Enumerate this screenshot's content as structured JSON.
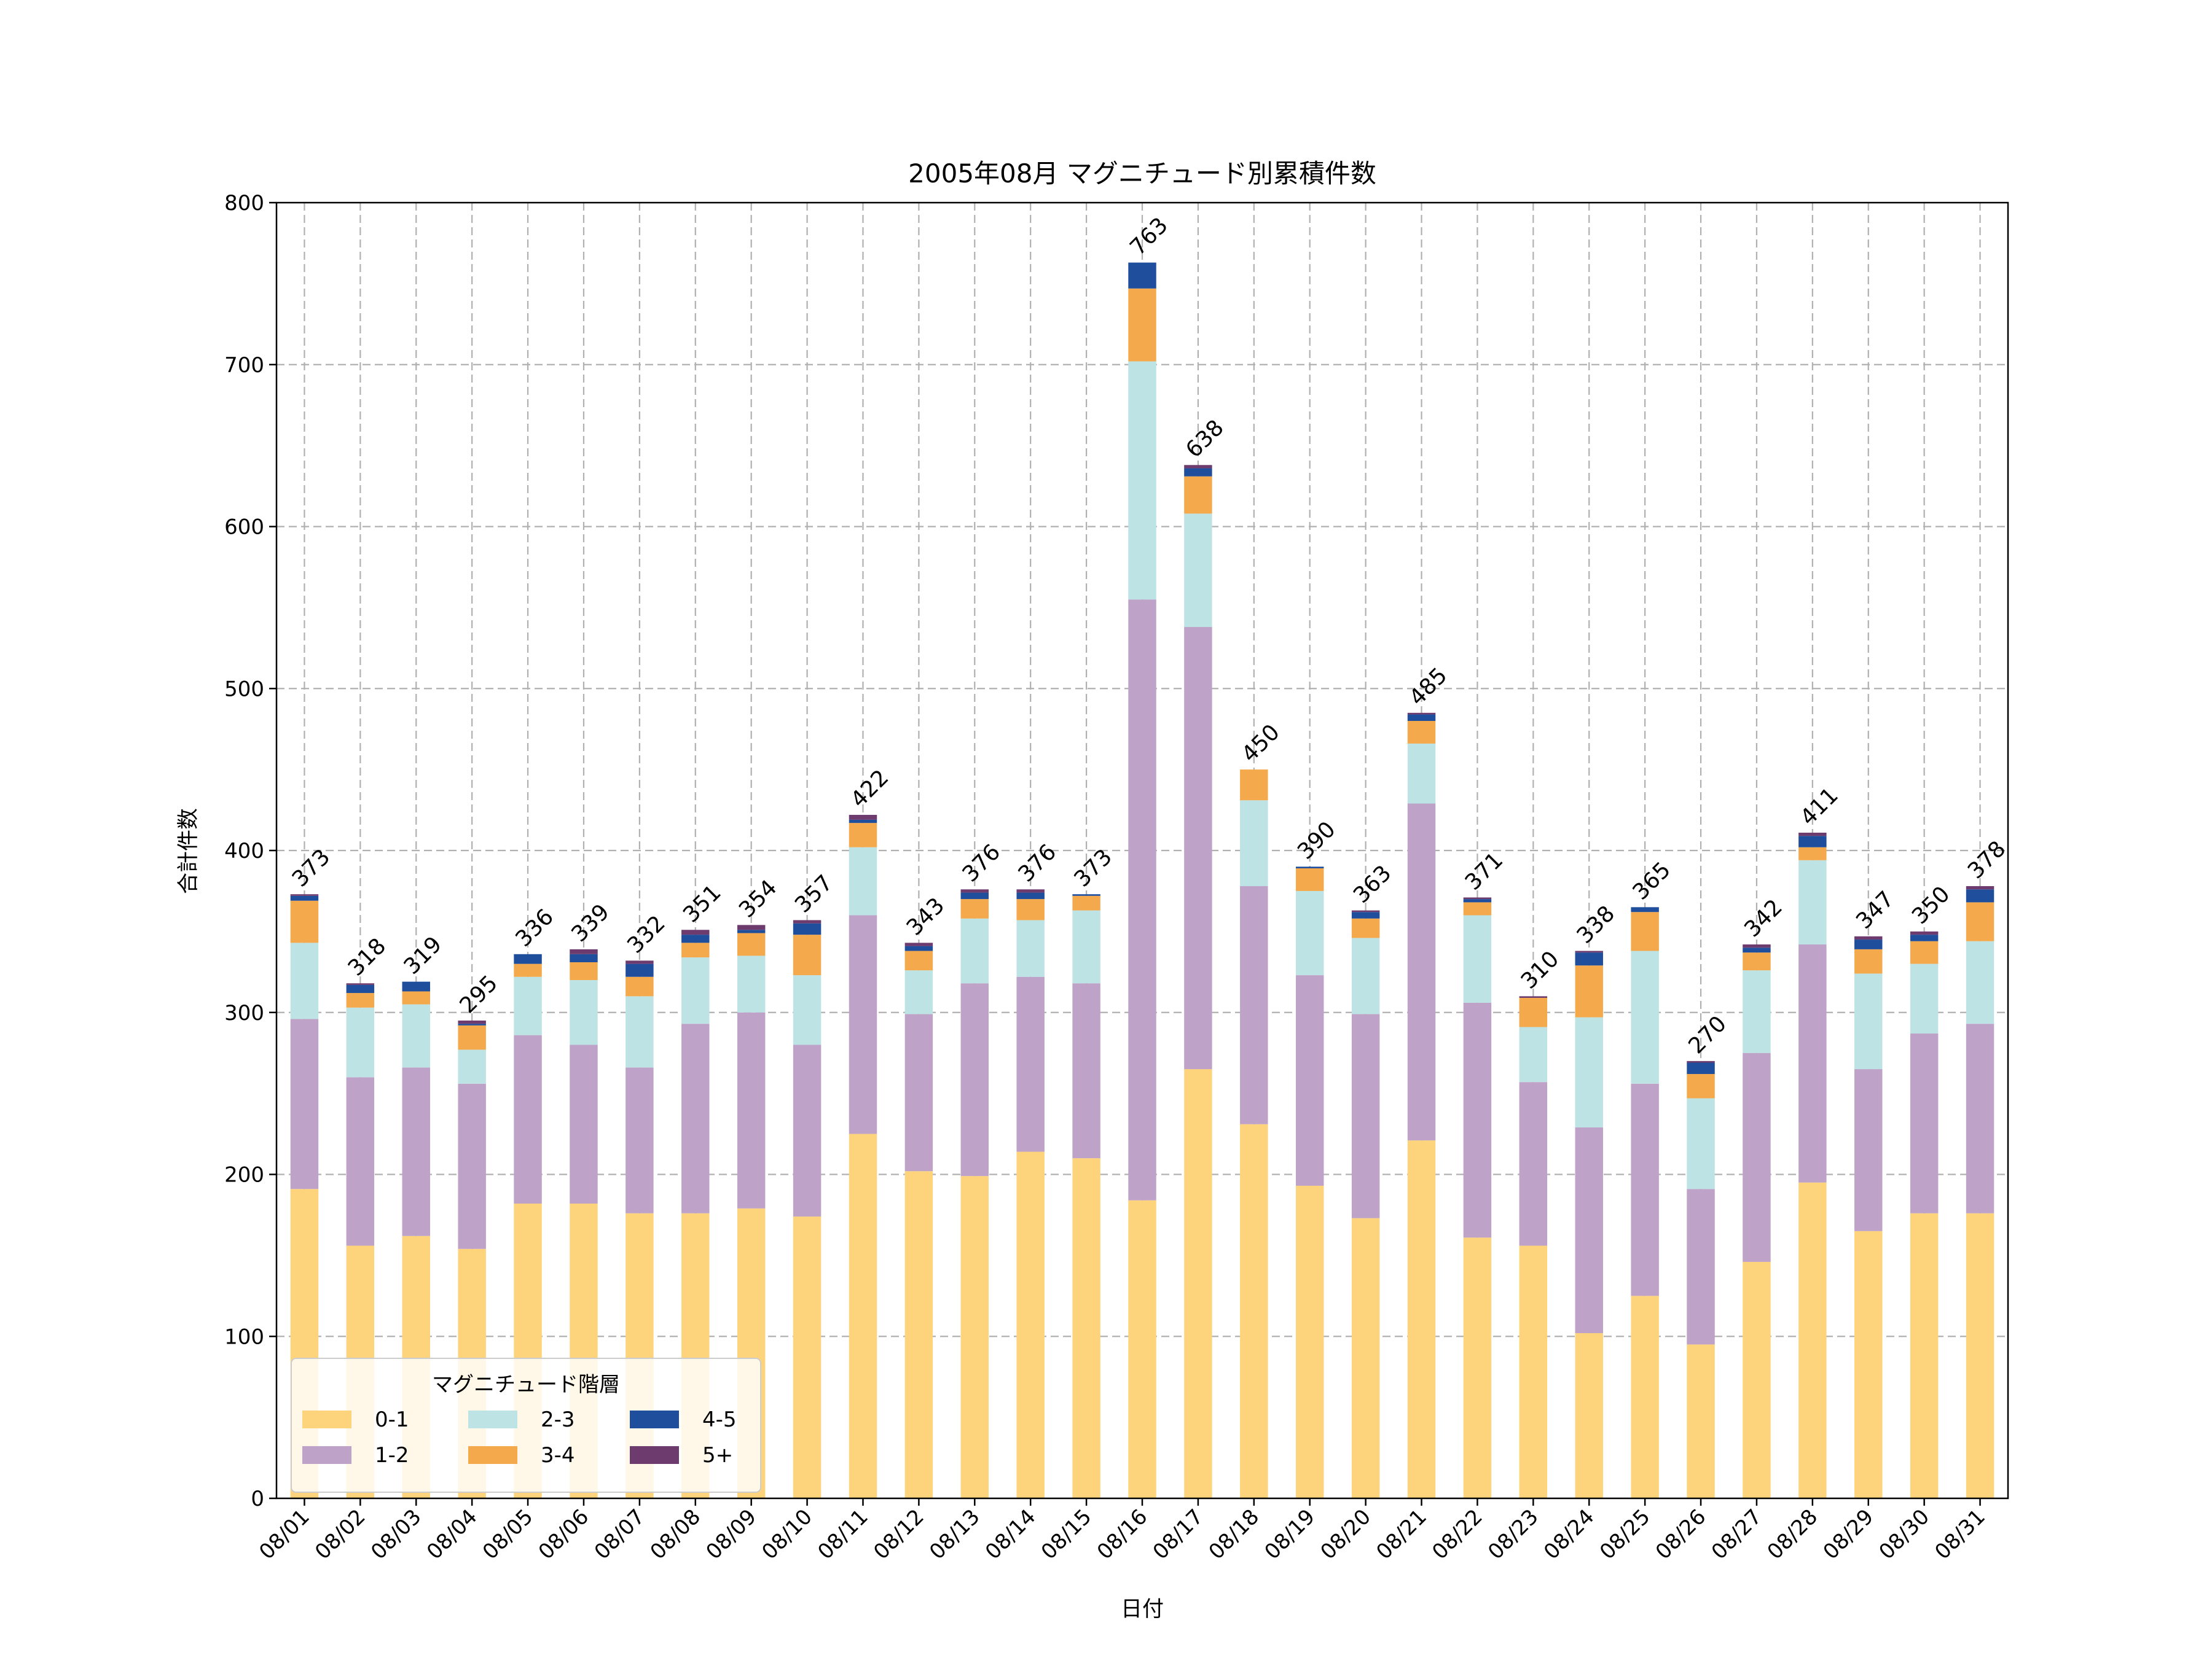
{
  "chart_data": {
    "type": "bar",
    "stacked": true,
    "title": "2005年08月 マグニチュード別累積件数",
    "xlabel": "日付",
    "ylabel": "合計件数",
    "ylim": [
      0,
      800
    ],
    "yticks": [
      0,
      100,
      200,
      300,
      400,
      500,
      600,
      700,
      800
    ],
    "grid": true,
    "legend": {
      "title": "マグニチュード階層",
      "placement": "lower-left"
    },
    "categories": [
      "08/01",
      "08/02",
      "08/03",
      "08/04",
      "08/05",
      "08/06",
      "08/07",
      "08/08",
      "08/09",
      "08/10",
      "08/11",
      "08/12",
      "08/13",
      "08/14",
      "08/15",
      "08/16",
      "08/17",
      "08/18",
      "08/19",
      "08/20",
      "08/21",
      "08/22",
      "08/23",
      "08/24",
      "08/25",
      "08/26",
      "08/27",
      "08/28",
      "08/29",
      "08/30",
      "08/31"
    ],
    "series": [
      {
        "name": "0-1",
        "color": "#FDD47C",
        "values": [
          191,
          156,
          162,
          154,
          182,
          182,
          176,
          176,
          179,
          174,
          225,
          202,
          199,
          214,
          210,
          184,
          265,
          231,
          193,
          173,
          221,
          161,
          156,
          102,
          125,
          95,
          146,
          195,
          165,
          176,
          176
        ]
      },
      {
        "name": "1-2",
        "color": "#BFA2C7",
        "values": [
          105,
          104,
          104,
          102,
          104,
          98,
          90,
          117,
          121,
          106,
          135,
          97,
          119,
          108,
          108,
          371,
          273,
          147,
          130,
          126,
          208,
          145,
          101,
          127,
          131,
          96,
          129,
          147,
          100,
          111,
          117
        ]
      },
      {
        "name": "2-3",
        "color": "#BDE3E5",
        "values": [
          47,
          43,
          39,
          21,
          36,
          40,
          44,
          41,
          35,
          43,
          42,
          27,
          40,
          35,
          45,
          147,
          70,
          53,
          52,
          47,
          37,
          54,
          34,
          68,
          82,
          56,
          51,
          52,
          59,
          43,
          51
        ]
      },
      {
        "name": "3-4",
        "color": "#F5A94D",
        "values": [
          26,
          9,
          8,
          15,
          8,
          11,
          12,
          9,
          14,
          25,
          15,
          12,
          12,
          13,
          9,
          45,
          23,
          19,
          14,
          12,
          14,
          8,
          18,
          32,
          24,
          15,
          11,
          8,
          15,
          14,
          24
        ]
      },
      {
        "name": "4-5",
        "color": "#1F4E9C",
        "values": [
          3,
          5,
          6,
          1,
          6,
          5,
          8,
          5,
          2,
          7,
          2,
          3,
          4,
          4,
          1,
          16,
          5,
          0,
          1,
          4,
          4,
          2,
          0,
          8,
          3,
          7,
          3,
          7,
          6,
          4,
          8
        ]
      },
      {
        "name": "5+",
        "color": "#6E3B6E",
        "values": [
          1,
          1,
          0,
          2,
          0,
          3,
          2,
          3,
          3,
          2,
          3,
          2,
          2,
          2,
          0,
          0,
          2,
          0,
          0,
          1,
          1,
          1,
          1,
          1,
          0,
          1,
          2,
          2,
          2,
          2,
          2
        ]
      }
    ],
    "totals": [
      373,
      318,
      319,
      295,
      336,
      339,
      332,
      351,
      354,
      357,
      422,
      343,
      376,
      376,
      373,
      763,
      638,
      450,
      390,
      363,
      485,
      371,
      310,
      338,
      365,
      270,
      342,
      411,
      347,
      350,
      378
    ]
  }
}
